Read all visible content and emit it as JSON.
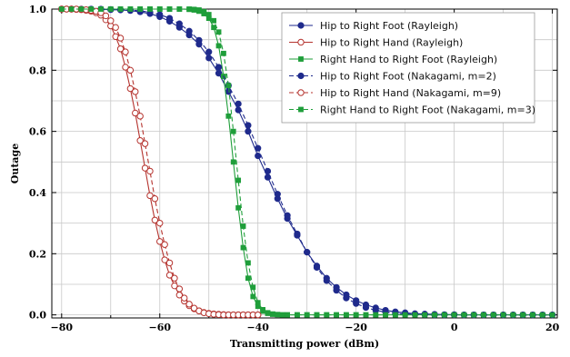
{
  "chart_data": {
    "type": "line",
    "xlabel": "Transmitting power (dBm)",
    "ylabel": "Outage",
    "xlim": [
      -82,
      21
    ],
    "ylim": [
      -0.01,
      1.0
    ],
    "xticks": [
      -80,
      -60,
      -40,
      -20,
      0,
      20
    ],
    "xtick_labels": [
      "−80",
      "−60",
      "−40",
      "−20",
      "0",
      "20"
    ],
    "yticks": [
      0.0,
      0.2,
      0.4,
      0.6,
      0.8,
      1.0
    ],
    "ytick_labels": [
      "0.0",
      "0.2",
      "0.4",
      "0.6",
      "0.8",
      "1.0"
    ],
    "grid": true,
    "legend_position": "top-right",
    "colors": {
      "blue": "#1f2a8c",
      "red": "#b5332e",
      "green": "#1f9e3a"
    },
    "series": [
      {
        "name": "Hip to Right Foot (Rayleigh)",
        "color": "blue",
        "dash": "solid",
        "marker": "circle-filled",
        "x": [
          -80,
          -78,
          -76,
          -74,
          -72,
          -70,
          -68,
          -66,
          -64,
          -62,
          -60,
          -58,
          -56,
          -54,
          -52,
          -50,
          -48,
          -46,
          -44,
          -42,
          -40,
          -38,
          -36,
          -34,
          -32,
          -30,
          -28,
          -26,
          -24,
          -22,
          -20,
          -18,
          -16,
          -14,
          -12,
          -10,
          -8,
          -6,
          -4,
          -2,
          0,
          2,
          4,
          6,
          8,
          10,
          12,
          14,
          16,
          18,
          20
        ],
        "y": [
          1.0,
          1.0,
          1.0,
          1.0,
          0.999,
          0.998,
          0.997,
          0.995,
          0.991,
          0.985,
          0.975,
          0.96,
          0.94,
          0.915,
          0.885,
          0.84,
          0.79,
          0.73,
          0.67,
          0.6,
          0.52,
          0.45,
          0.38,
          0.315,
          0.26,
          0.205,
          0.16,
          0.12,
          0.09,
          0.066,
          0.047,
          0.033,
          0.023,
          0.015,
          0.01,
          0.007,
          0.004,
          0.003,
          0.002,
          0.001,
          0.001,
          0.0,
          0.0,
          0.0,
          0.0,
          0.0,
          0.0,
          0.0,
          0.0,
          0.0,
          0.0
        ]
      },
      {
        "name": "Hip to Right Hand (Rayleigh)",
        "color": "red",
        "dash": "solid",
        "marker": "circle-open",
        "x": [
          -80,
          -79,
          -78,
          -77,
          -76,
          -75,
          -74,
          -73,
          -72,
          -71,
          -70,
          -69,
          -68,
          -67,
          -66,
          -65,
          -64,
          -63,
          -62,
          -61,
          -60,
          -59,
          -58,
          -57,
          -56,
          -55,
          -54,
          -53,
          -52,
          -51,
          -50,
          -49,
          -48,
          -47,
          -46,
          -45,
          -44,
          -43,
          -42,
          -41,
          -40
        ],
        "y": [
          1.0,
          1.0,
          1.0,
          0.999,
          0.998,
          0.996,
          0.993,
          0.988,
          0.98,
          0.965,
          0.945,
          0.91,
          0.87,
          0.81,
          0.74,
          0.66,
          0.57,
          0.48,
          0.39,
          0.31,
          0.24,
          0.18,
          0.13,
          0.095,
          0.065,
          0.045,
          0.03,
          0.02,
          0.013,
          0.008,
          0.005,
          0.003,
          0.002,
          0.001,
          0.0,
          0.0,
          0.0,
          0.0,
          0.0,
          0.0,
          0.0
        ]
      },
      {
        "name": "Right Hand to Right Foot (Rayleigh)",
        "color": "green",
        "dash": "solid",
        "marker": "square-filled",
        "x": [
          -80,
          -78,
          -76,
          -74,
          -72,
          -70,
          -68,
          -66,
          -64,
          -62,
          -60,
          -58,
          -56,
          -54,
          -53,
          -52,
          -51,
          -50,
          -49,
          -48,
          -47,
          -46,
          -45,
          -44,
          -43,
          -42,
          -41,
          -40,
          -39,
          -38,
          -37,
          -36,
          -35,
          -34,
          -32,
          -30,
          -28,
          -26,
          -24,
          -22,
          -20,
          -18,
          -16,
          -14,
          -12,
          -10,
          -8,
          -6,
          -4,
          -2,
          0,
          2,
          4,
          6,
          8,
          10,
          12,
          14,
          16,
          18,
          20
        ],
        "y": [
          1.0,
          1.0,
          1.0,
          1.0,
          1.0,
          1.0,
          1.0,
          1.0,
          1.0,
          1.0,
          1.0,
          1.0,
          1.0,
          0.999,
          0.997,
          0.993,
          0.985,
          0.97,
          0.94,
          0.88,
          0.78,
          0.65,
          0.5,
          0.35,
          0.22,
          0.12,
          0.06,
          0.028,
          0.012,
          0.005,
          0.002,
          0.001,
          0.0,
          0.0,
          0.0,
          0.0,
          0.0,
          0.0,
          0.0,
          0.0,
          0.0,
          0.0,
          0.0,
          0.0,
          0.0,
          0.0,
          0.0,
          0.0,
          0.0,
          0.0,
          0.0,
          0.0,
          0.0,
          0.0,
          0.0,
          0.0,
          0.0,
          0.0,
          0.0,
          0.0,
          0.0
        ]
      },
      {
        "name": "Hip to Right Foot (Nakagami, m=2)",
        "color": "blue",
        "dash": "dashed",
        "marker": "circle-filled",
        "x": [
          -80,
          -78,
          -76,
          -74,
          -72,
          -70,
          -68,
          -66,
          -64,
          -62,
          -60,
          -58,
          -56,
          -54,
          -52,
          -50,
          -48,
          -46,
          -44,
          -42,
          -40,
          -38,
          -36,
          -34,
          -32,
          -30,
          -28,
          -26,
          -24,
          -22,
          -20,
          -18,
          -16,
          -14,
          -12,
          -10,
          -8,
          -6,
          -4,
          -2,
          0,
          2,
          4,
          6,
          8,
          10,
          12,
          14,
          16,
          18,
          20
        ],
        "y": [
          1.0,
          1.0,
          1.0,
          1.0,
          1.0,
          0.999,
          0.998,
          0.997,
          0.994,
          0.99,
          0.982,
          0.97,
          0.952,
          0.928,
          0.898,
          0.86,
          0.81,
          0.75,
          0.69,
          0.62,
          0.545,
          0.47,
          0.395,
          0.325,
          0.265,
          0.205,
          0.155,
          0.112,
          0.08,
          0.055,
          0.037,
          0.024,
          0.015,
          0.009,
          0.005,
          0.003,
          0.002,
          0.001,
          0.0,
          0.0,
          0.0,
          0.0,
          0.0,
          0.0,
          0.0,
          0.0,
          0.0,
          0.0,
          0.0,
          0.0,
          0.0
        ]
      },
      {
        "name": "Hip to Right Hand (Nakagami, m=9)",
        "color": "red",
        "dash": "dashed",
        "marker": "circle-open",
        "x": [
          -80,
          -79,
          -78,
          -77,
          -76,
          -75,
          -74,
          -73,
          -72,
          -71,
          -70,
          -69,
          -68,
          -67,
          -66,
          -65,
          -64,
          -63,
          -62,
          -61,
          -60,
          -59,
          -58,
          -57,
          -56,
          -55,
          -54,
          -53,
          -52,
          -51,
          -50,
          -49,
          -48,
          -47,
          -46,
          -45,
          -44,
          -43,
          -42,
          -41,
          -40
        ],
        "y": [
          1.0,
          1.0,
          1.0,
          1.0,
          0.999,
          0.998,
          0.996,
          0.993,
          0.988,
          0.978,
          0.962,
          0.94,
          0.905,
          0.86,
          0.8,
          0.73,
          0.65,
          0.56,
          0.47,
          0.38,
          0.3,
          0.23,
          0.17,
          0.12,
          0.085,
          0.055,
          0.035,
          0.022,
          0.013,
          0.007,
          0.004,
          0.002,
          0.001,
          0.0,
          0.0,
          0.0,
          0.0,
          0.0,
          0.0,
          0.0,
          0.0
        ]
      },
      {
        "name": "Right Hand to Right Foot (Nakagami, m=3)",
        "color": "green",
        "dash": "dashed",
        "marker": "square-filled",
        "x": [
          -80,
          -78,
          -76,
          -74,
          -72,
          -70,
          -68,
          -66,
          -64,
          -62,
          -60,
          -58,
          -56,
          -54,
          -53,
          -52,
          -51,
          -50,
          -49,
          -48,
          -47,
          -46,
          -45,
          -44,
          -43,
          -42,
          -41,
          -40,
          -39,
          -38,
          -37,
          -36,
          -35,
          -34,
          -32,
          -30,
          -28,
          -26,
          -24,
          -22,
          -20,
          -18,
          -16,
          -14,
          -12,
          -10,
          -8,
          -6,
          -4,
          -2,
          0,
          2,
          4,
          6,
          8,
          10,
          12,
          14,
          16,
          18,
          20
        ],
        "y": [
          1.0,
          1.0,
          1.0,
          1.0,
          1.0,
          1.0,
          1.0,
          1.0,
          1.0,
          1.0,
          1.0,
          1.0,
          1.0,
          1.0,
          0.999,
          0.997,
          0.992,
          0.982,
          0.962,
          0.925,
          0.855,
          0.75,
          0.6,
          0.44,
          0.29,
          0.17,
          0.09,
          0.04,
          0.017,
          0.007,
          0.003,
          0.001,
          0.0,
          0.0,
          0.0,
          0.0,
          0.0,
          0.0,
          0.0,
          0.0,
          0.0,
          0.0,
          0.0,
          0.0,
          0.0,
          0.0,
          0.0,
          0.0,
          0.0,
          0.0,
          0.0,
          0.0,
          0.0,
          0.0,
          0.0,
          0.0,
          0.0,
          0.0,
          0.0,
          0.0,
          0.0
        ]
      }
    ]
  }
}
